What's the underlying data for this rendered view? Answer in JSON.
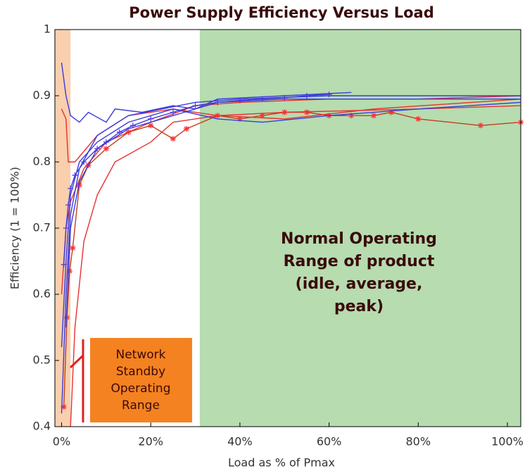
{
  "chart_data": {
    "type": "line",
    "title": "Power Supply Efficiency Versus Load",
    "x_label": "Load as % of Pmax",
    "y_label": "Efficiency (1 = 100%)",
    "xlim": [
      -1.5,
      103
    ],
    "ylim": [
      0.4,
      1
    ],
    "xticks": [
      {
        "value": 0,
        "label": "0%"
      },
      {
        "value": 20,
        "label": "20%"
      },
      {
        "value": 40,
        "label": "40%"
      },
      {
        "value": 60,
        "label": "60%"
      },
      {
        "value": 80,
        "label": "80%"
      },
      {
        "value": 100,
        "label": "100%"
      }
    ],
    "yticks": [
      0.4,
      0.5,
      0.6,
      0.7,
      0.8,
      0.9,
      1
    ],
    "regions": [
      {
        "from": -1.5,
        "to": 2,
        "color": "#f9cfae"
      },
      {
        "from": 31,
        "to": 103,
        "color": "#b6dcb0"
      }
    ],
    "annotations": [
      {
        "lines": [
          "Normal Operating",
          "Range of product",
          "(idle, average,",
          "peak)"
        ]
      },
      {
        "lines": [
          "Network",
          "Standby",
          "Operating",
          "Range"
        ]
      }
    ],
    "series": [
      {
        "color": "#c0401a",
        "marker": "*",
        "x": [
          0.5,
          1.2,
          1.8,
          2.5,
          4,
          6,
          10,
          15,
          20,
          25,
          28,
          35,
          40,
          45,
          50,
          55,
          60,
          65,
          70,
          74,
          80,
          94,
          103
        ],
        "values": [
          0.43,
          0.565,
          0.635,
          0.67,
          0.765,
          0.795,
          0.82,
          0.845,
          0.855,
          0.835,
          0.85,
          0.87,
          0.865,
          0.87,
          0.875,
          0.875,
          0.87,
          0.87,
          0.87,
          0.875,
          0.865,
          0.855,
          0.86
        ]
      },
      {
        "color": "#e83030",
        "x": [
          0,
          1,
          2,
          5,
          10,
          20,
          30,
          40,
          60,
          80,
          103
        ],
        "values": [
          0.6,
          0.7,
          0.74,
          0.79,
          0.83,
          0.86,
          0.885,
          0.89,
          0.895,
          0.895,
          0.9
        ]
      },
      {
        "color": "#e83030",
        "x": [
          0,
          1,
          1.5,
          3,
          8,
          15,
          25,
          35,
          50,
          70,
          103
        ],
        "values": [
          0.88,
          0.865,
          0.8,
          0.8,
          0.84,
          0.87,
          0.88,
          0.87,
          0.865,
          0.88,
          0.895
        ]
      },
      {
        "color": "#e83030",
        "x": [
          2,
          3,
          5,
          8,
          12,
          20,
          25,
          35,
          50,
          80,
          103
        ],
        "values": [
          0.4,
          0.55,
          0.68,
          0.75,
          0.8,
          0.83,
          0.86,
          0.87,
          0.875,
          0.88,
          0.885
        ]
      },
      {
        "color": "#3b3bdc",
        "marker": "+",
        "x": [
          0.5,
          1,
          1.5,
          2,
          3,
          5,
          8,
          10,
          13,
          16,
          20,
          25,
          30,
          35,
          40,
          45,
          50,
          55,
          60
        ],
        "values": [
          0.645,
          0.7,
          0.735,
          0.76,
          0.78,
          0.8,
          0.82,
          0.83,
          0.845,
          0.855,
          0.865,
          0.875,
          0.885,
          0.89,
          0.893,
          0.895,
          0.897,
          0.9,
          0.902
        ]
      },
      {
        "color": "#3b3bdc",
        "x": [
          0,
          1,
          2,
          4,
          6,
          10,
          12,
          18,
          25,
          30,
          35,
          50,
          65
        ],
        "values": [
          0.95,
          0.9,
          0.87,
          0.86,
          0.875,
          0.86,
          0.88,
          0.875,
          0.885,
          0.88,
          0.895,
          0.9,
          0.905
        ]
      },
      {
        "color": "#3b3bdc",
        "x": [
          0,
          1,
          2,
          4,
          8,
          15,
          25,
          35,
          45,
          60,
          80,
          103
        ],
        "values": [
          0.52,
          0.65,
          0.75,
          0.8,
          0.83,
          0.86,
          0.88,
          0.865,
          0.86,
          0.87,
          0.88,
          0.89
        ]
      },
      {
        "color": "#3b3bdc",
        "x": [
          0,
          1,
          2,
          4,
          8,
          15,
          30,
          40,
          60,
          80,
          103
        ],
        "values": [
          0.42,
          0.6,
          0.72,
          0.79,
          0.84,
          0.87,
          0.89,
          0.895,
          0.9,
          0.9,
          0.9
        ]
      },
      {
        "color": "#3b3bdc",
        "x": [
          1,
          2,
          4,
          8,
          15,
          25,
          35,
          50,
          70,
          103
        ],
        "values": [
          0.55,
          0.7,
          0.77,
          0.82,
          0.85,
          0.87,
          0.89,
          0.895,
          0.895,
          0.895
        ]
      }
    ]
  }
}
